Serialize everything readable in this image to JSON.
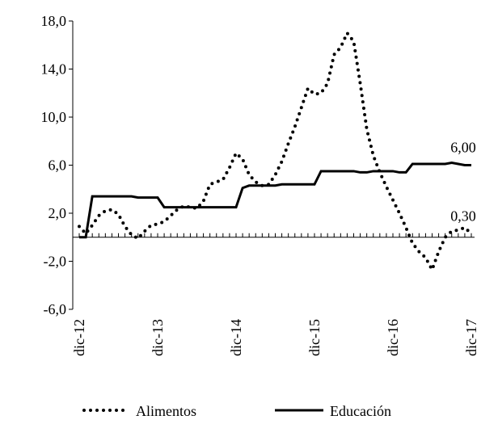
{
  "chart_data": {
    "type": "line",
    "categories": [
      "dic-12",
      null,
      null,
      null,
      null,
      null,
      null,
      null,
      null,
      null,
      null,
      null,
      "dic-13",
      null,
      null,
      null,
      null,
      null,
      null,
      null,
      null,
      null,
      null,
      null,
      "dic-14",
      null,
      null,
      null,
      null,
      null,
      null,
      null,
      null,
      null,
      null,
      null,
      "dic-15",
      null,
      null,
      null,
      null,
      null,
      null,
      null,
      null,
      null,
      null,
      null,
      "dic-16",
      null,
      null,
      null,
      null,
      null,
      null,
      null,
      null,
      null,
      null,
      null,
      "dic-17"
    ],
    "series": [
      {
        "name": "Alimentos",
        "color": "#000000",
        "style": "dotted",
        "end_label": "0,30",
        "values": [
          0.9,
          0.3,
          1.0,
          1.8,
          2.2,
          2.3,
          1.9,
          0.9,
          0.2,
          -0.1,
          0.5,
          1.0,
          1.1,
          1.3,
          1.8,
          2.3,
          2.6,
          2.5,
          2.4,
          3.0,
          4.4,
          4.6,
          4.8,
          5.8,
          7.0,
          6.5,
          5.2,
          4.6,
          4.3,
          4.4,
          5.2,
          6.3,
          7.8,
          9.2,
          10.8,
          12.4,
          11.9,
          12.0,
          12.8,
          15.2,
          15.8,
          17.0,
          16.3,
          12.8,
          9.0,
          6.8,
          5.4,
          4.2,
          3.1,
          2.0,
          0.8,
          -0.5,
          -1.2,
          -1.7,
          -2.7,
          -1.2,
          0.0,
          0.5,
          0.6,
          0.8,
          0.3
        ]
      },
      {
        "name": "Educación",
        "color": "#000000",
        "style": "solid",
        "end_label": "6,00",
        "values": [
          0.0,
          0.0,
          3.4,
          3.4,
          3.4,
          3.4,
          3.4,
          3.4,
          3.4,
          3.3,
          3.3,
          3.3,
          3.3,
          2.5,
          2.5,
          2.5,
          2.5,
          2.5,
          2.5,
          2.5,
          2.5,
          2.5,
          2.5,
          2.5,
          2.5,
          4.1,
          4.3,
          4.3,
          4.3,
          4.3,
          4.3,
          4.4,
          4.4,
          4.4,
          4.4,
          4.4,
          4.4,
          5.5,
          5.5,
          5.5,
          5.5,
          5.5,
          5.5,
          5.4,
          5.4,
          5.5,
          5.5,
          5.5,
          5.5,
          5.4,
          5.4,
          6.1,
          6.1,
          6.1,
          6.1,
          6.1,
          6.1,
          6.2,
          6.1,
          6.0,
          6.0
        ]
      }
    ],
    "ylim": [
      -6,
      18
    ],
    "yticks": [
      {
        "value": -6,
        "label": "-6,0"
      },
      {
        "value": -2,
        "label": "-2,0"
      },
      {
        "value": 2,
        "label": "2,0"
      },
      {
        "value": 6,
        "label": "6,0"
      },
      {
        "value": 10,
        "label": "10,0"
      },
      {
        "value": 14,
        "label": "14,0"
      },
      {
        "value": 18,
        "label": "18,0"
      }
    ],
    "grid": false
  }
}
